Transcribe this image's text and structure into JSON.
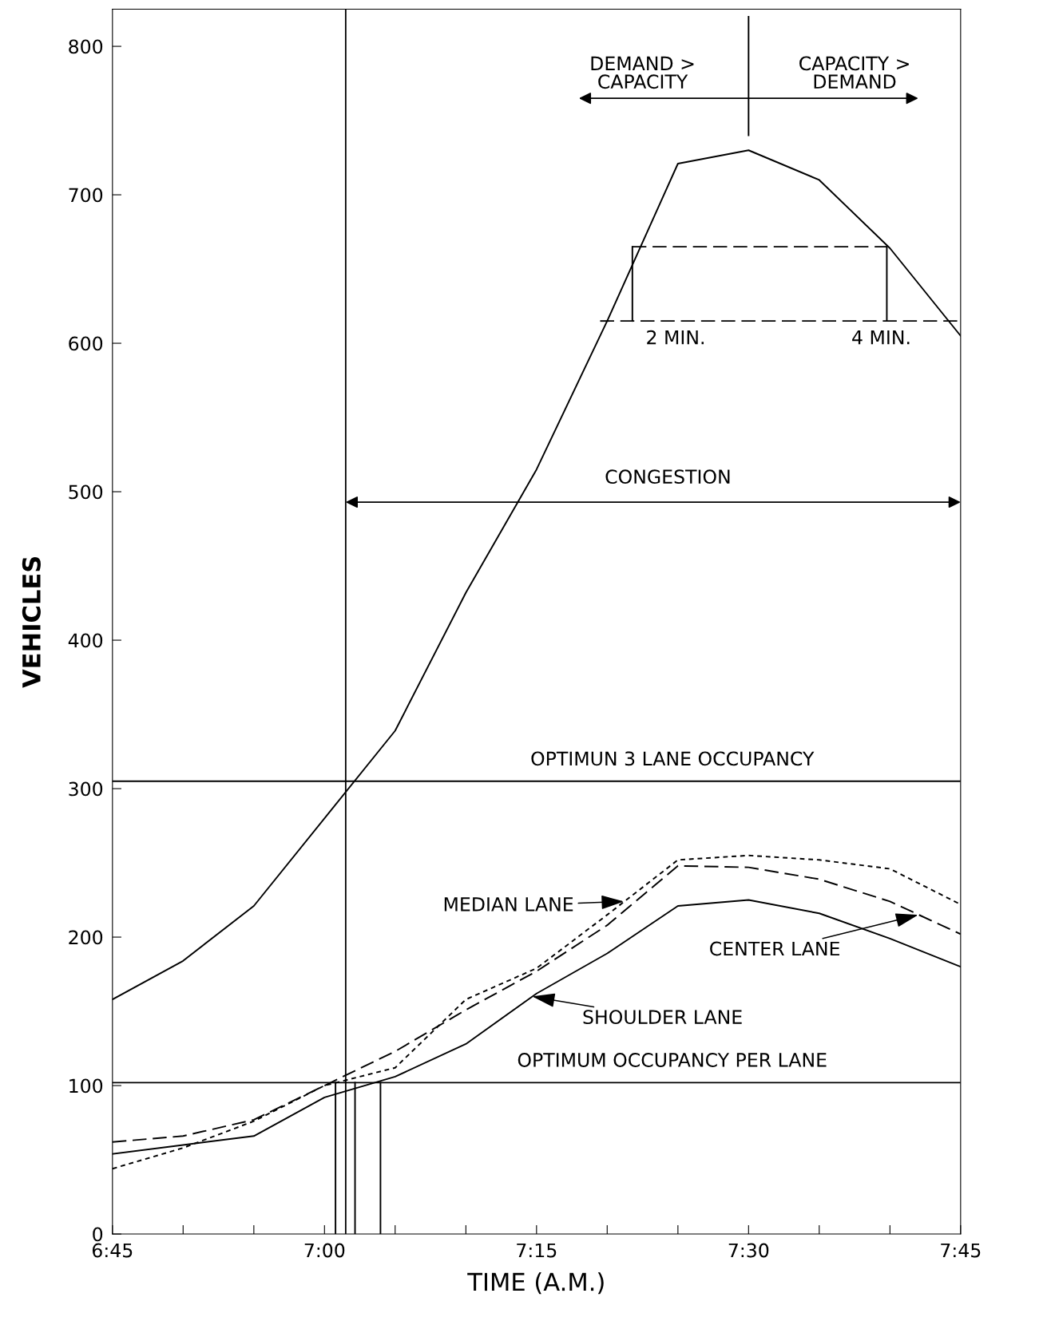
{
  "chart_data": {
    "type": "line",
    "xlabel": "TIME (A.M.)",
    "ylabel": "VEHICLES",
    "series": [
      {
        "color": "#000000",
        "line_style": "solid",
        "x": [
          6.75,
          6.8333,
          6.9167,
          7.0833,
          7.1667,
          7.25,
          7.3333,
          7.4167,
          7.5,
          7.5833,
          7.6667,
          7.75
        ],
        "values": [
          158,
          184,
          221,
          339,
          432,
          515,
          615,
          721,
          730,
          710,
          664,
          605
        ]
      },
      {
        "color": "#000000",
        "line_style": "dotted",
        "x": [
          6.75,
          6.8333,
          6.9167,
          7.0,
          7.0833,
          7.1667,
          7.25,
          7.3333,
          7.4167,
          7.5,
          7.5833,
          7.6667,
          7.75
        ],
        "values": [
          44,
          58,
          76,
          100,
          112,
          158,
          179,
          215,
          252,
          255,
          252,
          246,
          222
        ]
      },
      {
        "color": "#000000",
        "line_style": "dashed",
        "x": [
          6.75,
          6.8333,
          6.9167,
          7.0,
          7.0833,
          7.1667,
          7.25,
          7.3333,
          7.4167,
          7.5,
          7.5833,
          7.6667,
          7.75
        ],
        "values": [
          62,
          66,
          77,
          100,
          123,
          151,
          177,
          208,
          248,
          247,
          239,
          224,
          202
        ]
      },
      {
        "color": "#000000",
        "line_style": "solid",
        "x": [
          6.75,
          6.8333,
          6.9167,
          7.0,
          7.0833,
          7.1667,
          7.25,
          7.3333,
          7.4167,
          7.5,
          7.5833,
          7.6667,
          7.75
        ],
        "values": [
          54,
          60,
          66,
          92,
          106,
          128,
          162,
          189,
          221,
          225,
          216,
          199,
          180
        ]
      },
      {
        "color": "#000000",
        "line_style": "dashed",
        "x": [
          7.325,
          7.746
        ],
        "values": [
          615,
          615
        ]
      },
      {
        "color": "#000000",
        "line_style": "dashed",
        "x": [
          7.363,
          7.663
        ],
        "values": [
          665,
          665
        ]
      },
      {
        "color": "#000000",
        "line_style": "solid",
        "x": [
          7.363,
          7.363
        ],
        "values": [
          615,
          665
        ]
      },
      {
        "color": "#000000",
        "line_style": "solid",
        "x": [
          7.663,
          7.663
        ],
        "values": [
          615,
          665
        ]
      },
      {
        "color": "#000000",
        "line_style": "solid",
        "x": [
          7.5,
          7.5
        ],
        "values": [
          740,
          820
        ]
      },
      {
        "color": "#000000",
        "line_style": "solid",
        "x": [
          7.013,
          7.013
        ],
        "values": [
          0,
          102
        ]
      },
      {
        "color": "#000000",
        "line_style": "solid",
        "x": [
          7.036,
          7.036
        ],
        "values": [
          0,
          102
        ]
      },
      {
        "color": "#000000",
        "line_style": "solid",
        "x": [
          7.066,
          7.066
        ],
        "values": [
          0,
          102
        ]
      },
      {
        "color": "#000000",
        "line_style": "solid",
        "x": [
          7.025,
          7.75
        ],
        "values": [
          493,
          493
        ]
      },
      {
        "color": "#000000",
        "line_style": "solid",
        "x": [
          7.3,
          7.7
        ],
        "values": [
          765,
          765
        ]
      }
    ],
    "ref_lines": [
      {
        "axis": "y",
        "value": 305,
        "label": "OPTIMUN 3 LANE OCCUPANCY"
      },
      {
        "axis": "y",
        "value": 102,
        "label": "OPTIMUM OCCUPANCY PER LANE"
      },
      {
        "axis": "x",
        "value": 7.025,
        "label": null
      }
    ],
    "annotations": [
      {
        "text": "MEDIAN LANE",
        "x": 7.353,
        "y": 224
      },
      {
        "text": "CENTER LANE",
        "x": 7.7,
        "y": 215
      },
      {
        "text": "SHOULDER LANE",
        "x": 7.245,
        "y": 160
      },
      {
        "text": "2 MIN.",
        "x": 7.363,
        "y": 615
      },
      {
        "text": "4 MIN.",
        "x": 7.663,
        "y": 615
      },
      "DEMAND >\nCAPACITY",
      "CAPACITY >\nDEMAND",
      "CONGESTION"
    ],
    "xlim": [
      6.75,
      7.75
    ],
    "ylim": [
      0,
      825
    ],
    "xticks": [
      {
        "value": 6.75,
        "label": "6:45"
      },
      {
        "value": 6.8333,
        "label": null
      },
      {
        "value": 6.9167,
        "label": null
      },
      {
        "value": 7.0,
        "label": "7:00"
      },
      {
        "value": 7.0833,
        "label": null
      },
      {
        "value": 7.1667,
        "label": null
      },
      {
        "value": 7.25,
        "label": "7:15"
      },
      {
        "value": 7.3333,
        "label": null
      },
      {
        "value": 7.4167,
        "label": null
      },
      {
        "value": 7.5,
        "label": "7:30"
      },
      {
        "value": 7.5833,
        "label": null
      },
      {
        "value": 7.6667,
        "label": null
      },
      {
        "value": 7.75,
        "label": "7:45"
      }
    ],
    "yticks": [
      0,
      100,
      200,
      300,
      400,
      500,
      600,
      700,
      800
    ],
    "grid": false,
    "legend": false,
    "marker": "none"
  }
}
